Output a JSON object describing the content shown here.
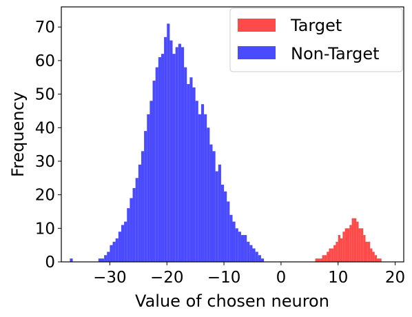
{
  "chart_data": {
    "type": "bar",
    "title": "",
    "xlabel": "Value of chosen neuron",
    "ylabel": "Frequency",
    "xlim": [
      -38.5,
      21.5
    ],
    "ylim": [
      0,
      76
    ],
    "x_ticks": [
      -30,
      -20,
      -10,
      0,
      10,
      20
    ],
    "x_tick_labels": [
      "−30",
      "−20",
      "−10",
      "0",
      "10",
      "20"
    ],
    "y_ticks": [
      0,
      10,
      20,
      30,
      40,
      50,
      60,
      70
    ],
    "y_tick_labels": [
      "0",
      "10",
      "20",
      "30",
      "40",
      "50",
      "60",
      "70"
    ],
    "grid": false,
    "legend_placement": "top-right",
    "series": [
      {
        "name": "Target",
        "color": "#ff4a4a",
        "x": [
          6.0,
          6.4,
          6.8,
          7.2,
          7.6,
          8.0,
          8.4,
          8.8,
          9.2,
          9.6,
          10.0,
          10.4,
          10.8,
          11.2,
          11.6,
          12.0,
          12.4,
          12.8,
          13.2,
          13.6,
          14.0,
          14.4,
          14.8,
          15.2,
          15.6,
          16.0,
          16.4,
          16.8,
          17.2
        ],
        "values": [
          1,
          1,
          1,
          2,
          2,
          3,
          4,
          4,
          5,
          6,
          8,
          7,
          9,
          10,
          10,
          11,
          13,
          13,
          12,
          10,
          10,
          8,
          6,
          6,
          4,
          3,
          2,
          1,
          1
        ]
      },
      {
        "name": "Non-Target",
        "color": "#4a4aff",
        "x": [
          -37.0,
          -32.0,
          -31.5,
          -31.0,
          -30.5,
          -30.0,
          -29.5,
          -29.0,
          -28.5,
          -28.0,
          -27.5,
          -27.0,
          -26.5,
          -26.0,
          -25.5,
          -25.0,
          -24.5,
          -24.0,
          -23.5,
          -23.0,
          -22.5,
          -22.0,
          -21.5,
          -21.0,
          -20.5,
          -20.0,
          -19.5,
          -19.0,
          -18.5,
          -18.0,
          -17.5,
          -17.0,
          -16.5,
          -16.0,
          -15.5,
          -15.0,
          -14.5,
          -14.0,
          -13.5,
          -13.0,
          -12.5,
          -12.0,
          -11.5,
          -11.0,
          -10.5,
          -10.0,
          -9.5,
          -9.0,
          -8.5,
          -8.0,
          -7.5,
          -7.0,
          -6.5,
          -6.0,
          -5.5,
          -5.0,
          -4.5,
          -4.0,
          -3.5
        ],
        "values": [
          1,
          1,
          1,
          2,
          3,
          5,
          6,
          7,
          9,
          11,
          12,
          16,
          19,
          22,
          25,
          29,
          33,
          39,
          44,
          48,
          54,
          58,
          61,
          62,
          67,
          71,
          66,
          62,
          64,
          65,
          64,
          58,
          53,
          55,
          52,
          48,
          44,
          47,
          44,
          40,
          35,
          33,
          27,
          29,
          23,
          21,
          18,
          14,
          12,
          10,
          9,
          8,
          8,
          6,
          5,
          4,
          3,
          2,
          1
        ]
      }
    ]
  }
}
